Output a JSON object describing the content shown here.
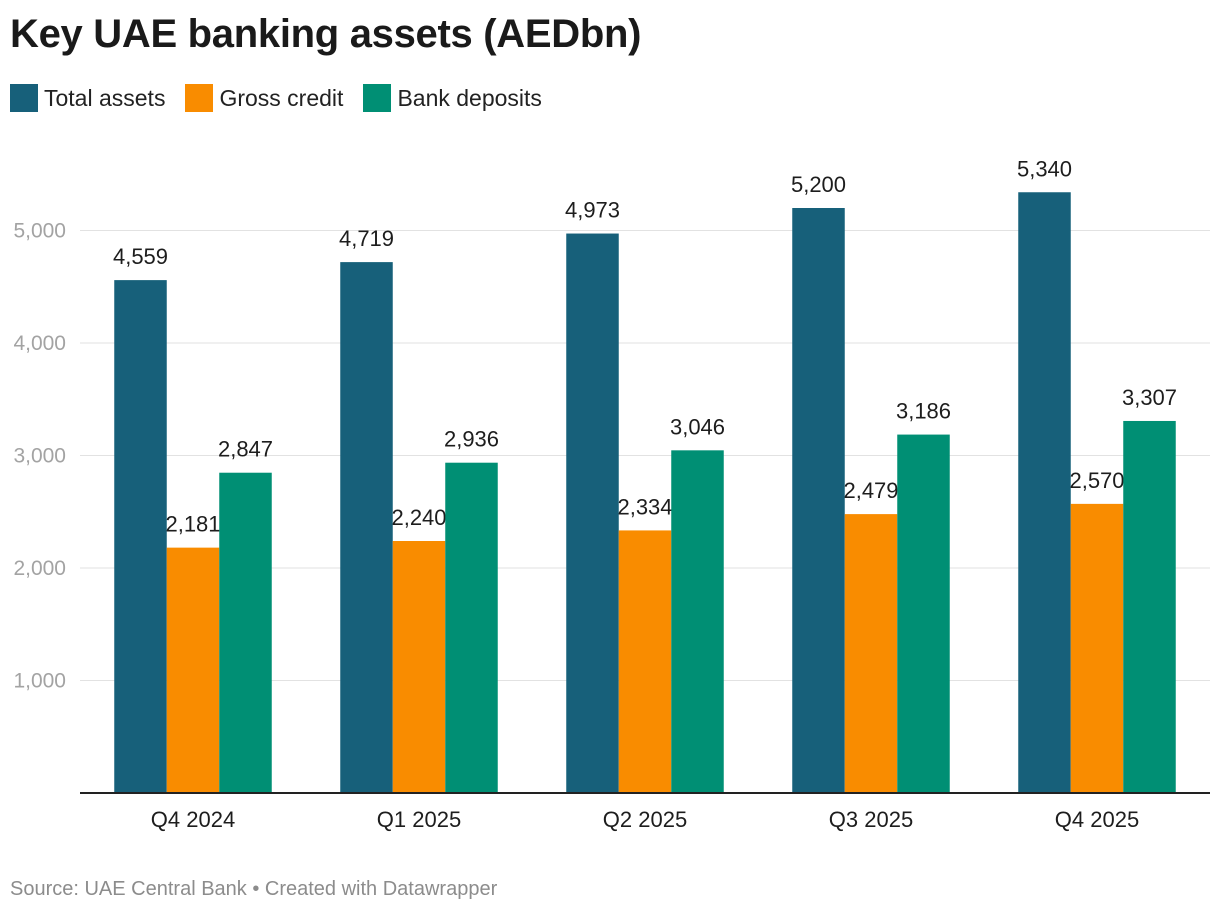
{
  "chart_data": {
    "type": "bar",
    "title": "Key UAE banking assets (AEDbn)",
    "categories": [
      "Q4 2024",
      "Q1 2025",
      "Q2 2025",
      "Q3 2025",
      "Q4 2025"
    ],
    "series": [
      {
        "name": "Total assets",
        "color": "#17607a",
        "values": [
          4559,
          4719,
          4973,
          5200,
          5340
        ],
        "labels": [
          "4,559",
          "4,719",
          "4,973",
          "5,200",
          "5,340"
        ]
      },
      {
        "name": "Gross credit",
        "color": "#f98c00",
        "values": [
          2181,
          2240,
          2334,
          2479,
          2570
        ],
        "labels": [
          "2,181",
          "2,240",
          "2,334",
          "2,479",
          "2,570"
        ]
      },
      {
        "name": "Bank deposits",
        "color": "#008f74",
        "values": [
          2847,
          2936,
          3046,
          3186,
          3307
        ],
        "labels": [
          "2,847",
          "2,936",
          "3,046",
          "3,186",
          "3,307"
        ]
      }
    ],
    "yticks": [
      1000,
      2000,
      3000,
      4000,
      5000
    ],
    "ytick_labels": [
      "1,000",
      "2,000",
      "3,000",
      "4,000",
      "5,000"
    ],
    "ylim": [
      0,
      5700
    ],
    "xlabel": "",
    "ylabel": "",
    "legend_position": "top-left",
    "grid": true
  },
  "source_text": "Source: UAE Central Bank • Created with Datawrapper"
}
